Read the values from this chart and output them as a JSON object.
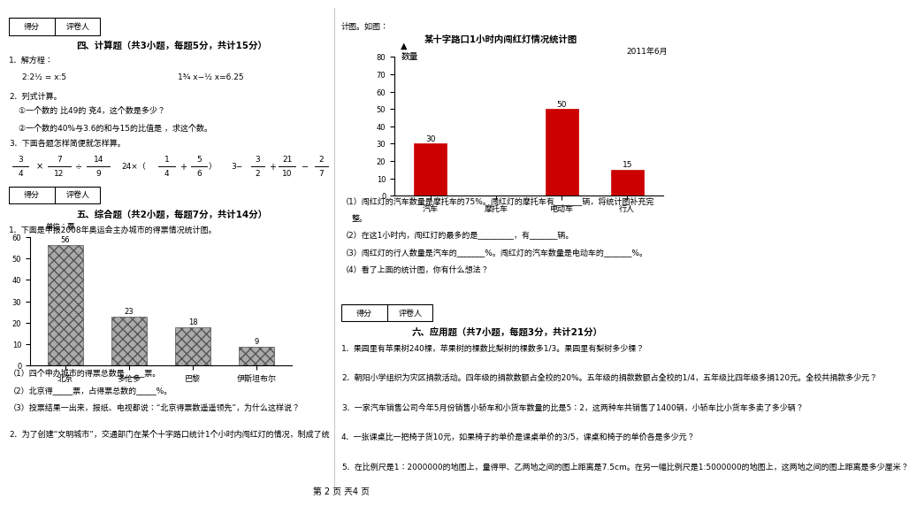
{
  "page_bg": "#ffffff",
  "section4_title": "四、计算题（共3小题，每题5分，共计15分）",
  "section5_title": "五、综合题（共2小题，每题7分，共计14分）",
  "section6_title": "六、应用题（共7小题，每题3分，共计21分）",
  "chart1_intro": "1．下面是申报2008年奥运会主办城市的得票情况统计图。",
  "chart1_ylabel_unit": "单位：票",
  "chart1_categories": [
    "北京",
    "多伦多",
    "巴黎",
    "伊斯坦布尔"
  ],
  "chart1_values": [
    56,
    23,
    18,
    9
  ],
  "chart1_ylim": [
    0,
    60
  ],
  "chart1_yticks": [
    0,
    10,
    20,
    30,
    40,
    50,
    60
  ],
  "chart1_bar_color": "#aaaaaa",
  "chart1_bar_hatch": "xxx",
  "chart1_q1": "（1）四个申办城市的得票总数是_____票。",
  "chart1_q2": "（2）北京得_____票，占得票总数的_____%。",
  "chart1_q3": "（3）投票结果一出来，报纸、电视都说：“北京得票数遥遥领先”，为什么这样说？",
  "chart2_title": "某十字路口1小时内闯红灯情况统计图",
  "chart2_subtitle": "2011年6月",
  "chart2_ylabel": "数量",
  "chart2_categories": [
    "汽车",
    "摩托车",
    "电动车",
    "行人"
  ],
  "chart2_values": [
    30,
    0,
    50,
    15
  ],
  "chart2_ylim": [
    0,
    80
  ],
  "chart2_yticks": [
    0,
    10,
    20,
    30,
    40,
    50,
    60,
    70,
    80
  ],
  "chart2_bar_color": "#cc0000",
  "chart2_q1": "（1）闯红灯的汽车数量是摩托车的75%。闯红灯的摩托车有_______辆，将统计图补充完",
  "chart2_q1b": "整。",
  "chart2_q2": "（2）在这1小时内，闯红灯的最多的是_________，有_______辆。",
  "chart2_q3": "（3）闯红灯的行人数量是汽车的_______%。闯红灯的汽车数量是电动车的_______%。",
  "chart2_q4": "（4）看了上面的统计图，你有什么想法？",
  "app_q1": "1．果园里有苹果树240棵，苹果树的棵数比梨树的棵数多1/3。果园里有梨树多少棵？",
  "app_q2": "2．朝阳小学组织为灾区捐款活动。四年级的捐款数额占全校的20%。五年级的捐款数额占全校的1/4，五年级比四年级多捐120元。全校共捐款多少元？",
  "app_q3": "3．一家汽车销售公司今年5月份销售小轿车和小货车数量的比是5：2，这两种车共销售了1400辆，小轿车比小货车多卖了多少辆？",
  "app_q4": "4．一张课桌比一把椅子货10元，如果椅子的单价是课桌单价的3/5，课桌和椅子的单价各是多少元？",
  "app_q5": "5．在比例尺是1：2000000的地图上，量得甲、乙两地之间的图上距离是7.5cm。在另一幅比例尺是1:5000000的地图上，这两地之间的图上距离是多少厘米？",
  "page_footer": "第 2 页 兲4 页"
}
